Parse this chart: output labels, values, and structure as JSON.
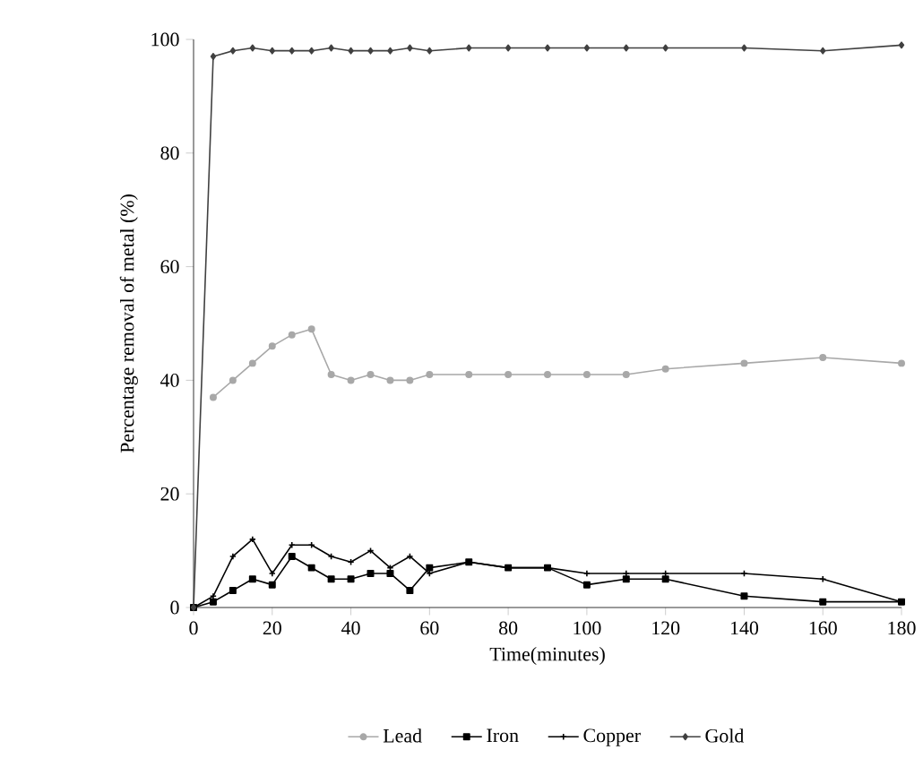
{
  "chart_data": {
    "type": "line",
    "xlabel": "Time(minutes)",
    "ylabel": "Percentage removal of metal (%)",
    "xlim": [
      0,
      180
    ],
    "ylim": [
      0,
      100
    ],
    "xticks": [
      0,
      20,
      40,
      60,
      80,
      100,
      120,
      140,
      160,
      180
    ],
    "yticks": [
      0,
      20,
      40,
      60,
      80,
      100
    ],
    "grid": false,
    "legend": "bottom",
    "series": [
      {
        "name": "Lead",
        "color": "#a8a8a8",
        "marker": "circle",
        "x": [
          5,
          10,
          15,
          20,
          25,
          30,
          35,
          40,
          45,
          50,
          55,
          60,
          70,
          80,
          90,
          100,
          110,
          120,
          140,
          160,
          180
        ],
        "values": [
          37,
          40,
          43,
          46,
          48,
          49,
          41,
          40,
          41,
          40,
          40,
          41,
          41,
          41,
          41,
          41,
          41,
          42,
          43,
          44,
          43
        ]
      },
      {
        "name": "Iron",
        "color": "#000000",
        "marker": "square",
        "x": [
          0,
          5,
          10,
          15,
          20,
          25,
          30,
          35,
          40,
          45,
          50,
          55,
          60,
          70,
          80,
          90,
          100,
          110,
          120,
          140,
          160,
          180
        ],
        "values": [
          0,
          1,
          3,
          5,
          4,
          9,
          7,
          5,
          5,
          6,
          6,
          3,
          7,
          8,
          7,
          7,
          4,
          5,
          5,
          2,
          1,
          1
        ]
      },
      {
        "name": "Copper",
        "color": "#000000",
        "marker": "cross",
        "x": [
          0,
          5,
          10,
          15,
          20,
          25,
          30,
          35,
          40,
          45,
          50,
          55,
          60,
          70,
          80,
          90,
          100,
          110,
          120,
          140,
          160,
          180
        ],
        "values": [
          0,
          2,
          9,
          12,
          6,
          11,
          11,
          9,
          8,
          10,
          7,
          9,
          6,
          8,
          7,
          7,
          6,
          6,
          6,
          6,
          5,
          1
        ]
      },
      {
        "name": "Gold",
        "color": "#404040",
        "marker": "diamond",
        "x": [
          0,
          5,
          10,
          15,
          20,
          25,
          30,
          35,
          40,
          45,
          50,
          55,
          60,
          70,
          80,
          90,
          100,
          110,
          120,
          140,
          160,
          180
        ],
        "values": [
          0,
          97,
          98,
          98.5,
          98,
          98,
          98,
          98.5,
          98,
          98,
          98,
          98.5,
          98,
          98.5,
          98.5,
          98.5,
          98.5,
          98.5,
          98.5,
          98.5,
          98,
          99
        ]
      }
    ]
  }
}
